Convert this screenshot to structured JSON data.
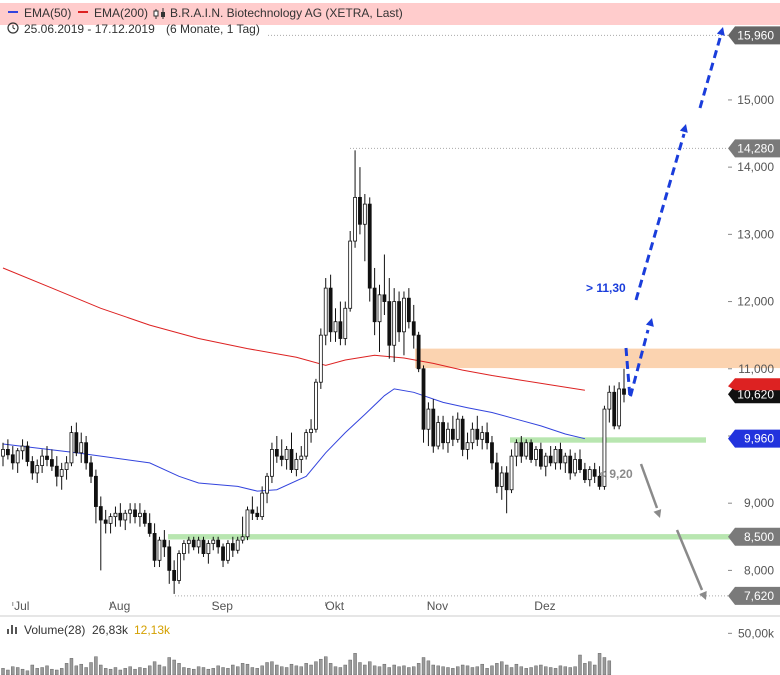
{
  "header": {
    "legend": [
      {
        "label": "EMA(50)",
        "color": "#3344dd"
      },
      {
        "label": "EMA(200)",
        "color": "#dd2222"
      }
    ],
    "title": "B.R.A.I.N. Biotechnology AG (XETRA, Last)",
    "date_range": "25.06.2019 - 17.12.2019",
    "period": "(6 Monate, 1 Tag)"
  },
  "colors": {
    "ema50": "#3344dd",
    "ema200": "#dd2222",
    "resistance_zone": "#fbd3b0",
    "support_zone": "#b8e6b0",
    "arrow_up": "#1a3ddb",
    "arrow_down": "#8a8a8a",
    "resistance_badge": "#ffb3b3",
    "last_price_badge": "#111111",
    "ema50_badge": "#2233dd"
  },
  "icons": [
    "candlestick-icon",
    "clock-icon",
    "volume-bars-icon"
  ],
  "chart_data": {
    "type": "candlestick",
    "ylim": [
      7500,
      16100
    ],
    "y_ticks": [
      "8,000",
      "9,000",
      "10,000",
      "11,000",
      "12,000",
      "13,000",
      "14,000",
      "15,000"
    ],
    "x_months": [
      "Jul",
      "Aug",
      "Sep",
      "Okt",
      "Nov",
      "Dez"
    ],
    "candles": [
      [
        9700,
        9900,
        9550,
        9800
      ],
      [
        9800,
        9950,
        9650,
        9720
      ],
      [
        9720,
        9850,
        9500,
        9600
      ],
      [
        9600,
        9820,
        9450,
        9780
      ],
      [
        9780,
        9950,
        9650,
        9850
      ],
      [
        9850,
        9920,
        9550,
        9620
      ],
      [
        9620,
        9700,
        9350,
        9450
      ],
      [
        9450,
        9650,
        9300,
        9560
      ],
      [
        9560,
        9800,
        9450,
        9700
      ],
      [
        9700,
        9850,
        9550,
        9650
      ],
      [
        9650,
        9800,
        9480,
        9550
      ],
      [
        9550,
        9700,
        9250,
        9400
      ],
      [
        9400,
        9600,
        9200,
        9500
      ],
      [
        9500,
        9700,
        9350,
        9600
      ],
      [
        9600,
        10150,
        9550,
        10050
      ],
      [
        10050,
        10200,
        9700,
        9750
      ],
      [
        9750,
        10050,
        9600,
        9900
      ],
      [
        9900,
        10000,
        9500,
        9600
      ],
      [
        9600,
        9700,
        9300,
        9400
      ],
      [
        9400,
        9500,
        8700,
        8950
      ],
      [
        8950,
        9100,
        8000,
        8750
      ],
      [
        8750,
        8900,
        8550,
        8700
      ],
      [
        8700,
        8850,
        8550,
        8800
      ],
      [
        8800,
        8950,
        8650,
        8850
      ],
      [
        8850,
        9000,
        8650,
        8750
      ],
      [
        8750,
        8900,
        8600,
        8850
      ],
      [
        8850,
        9000,
        8700,
        8900
      ],
      [
        8900,
        9000,
        8700,
        8800
      ],
      [
        8800,
        9000,
        8650,
        8850
      ],
      [
        8850,
        8900,
        8650,
        8700
      ],
      [
        8700,
        8850,
        8500,
        8550
      ],
      [
        8550,
        8700,
        8050,
        8150
      ],
      [
        8150,
        8500,
        8050,
        8450
      ],
      [
        8450,
        8600,
        8200,
        8350
      ],
      [
        8350,
        8450,
        7800,
        8000
      ],
      [
        8000,
        8150,
        7650,
        7850
      ],
      [
        7850,
        8300,
        7800,
        8250
      ],
      [
        8250,
        8450,
        8150,
        8400
      ],
      [
        8400,
        8500,
        8250,
        8450
      ],
      [
        8450,
        8500,
        8300,
        8350
      ],
      [
        8350,
        8500,
        8250,
        8450
      ],
      [
        8450,
        8500,
        8200,
        8250
      ],
      [
        8250,
        8450,
        8100,
        8400
      ],
      [
        8400,
        8500,
        8300,
        8450
      ],
      [
        8450,
        8500,
        8250,
        8350
      ],
      [
        8350,
        8400,
        8050,
        8150
      ],
      [
        8150,
        8450,
        8100,
        8400
      ],
      [
        8400,
        8500,
        8200,
        8300
      ],
      [
        8300,
        8500,
        8250,
        8450
      ],
      [
        8450,
        8800,
        8400,
        8500
      ],
      [
        8500,
        8950,
        8450,
        8900
      ],
      [
        8900,
        9100,
        8750,
        8850
      ],
      [
        8850,
        8950,
        8750,
        8800
      ],
      [
        8800,
        9250,
        8750,
        9150
      ],
      [
        9150,
        9450,
        9000,
        9400
      ],
      [
        9400,
        9900,
        9300,
        9800
      ],
      [
        9800,
        10000,
        9600,
        9700
      ],
      [
        9700,
        9950,
        9550,
        9650
      ],
      [
        9650,
        9850,
        9500,
        9800
      ],
      [
        9800,
        10050,
        9450,
        9500
      ],
      [
        9500,
        9750,
        9400,
        9650
      ],
      [
        9650,
        9850,
        9450,
        9700
      ],
      [
        9700,
        10100,
        9650,
        10050
      ],
      [
        10050,
        10250,
        9900,
        10100
      ],
      [
        10100,
        10850,
        10050,
        10800
      ],
      [
        10800,
        11600,
        10700,
        11500
      ],
      [
        11500,
        12350,
        11350,
        12200
      ],
      [
        12200,
        12400,
        11400,
        11550
      ],
      [
        11550,
        11900,
        11400,
        11700
      ],
      [
        11700,
        12000,
        11350,
        11450
      ],
      [
        11450,
        12000,
        11350,
        11900
      ],
      [
        11900,
        13050,
        11850,
        12900
      ],
      [
        12900,
        14250,
        12800,
        13550
      ],
      [
        13550,
        14000,
        13000,
        13150
      ],
      [
        13150,
        13600,
        12600,
        13450
      ],
      [
        13450,
        13550,
        12000,
        12200
      ],
      [
        12200,
        12500,
        11500,
        11700
      ],
      [
        11700,
        12250,
        11250,
        12100
      ],
      [
        12100,
        12700,
        11800,
        12000
      ],
      [
        12000,
        12350,
        11150,
        11350
      ],
      [
        11350,
        12200,
        11100,
        12000
      ],
      [
        12000,
        12150,
        11400,
        11550
      ],
      [
        11550,
        12150,
        11200,
        12050
      ],
      [
        12050,
        12200,
        11600,
        11700
      ],
      [
        11700,
        11950,
        11300,
        11500
      ],
      [
        11500,
        11550,
        10950,
        11000
      ],
      [
        11000,
        11050,
        9900,
        10100
      ],
      [
        10100,
        10500,
        9850,
        10400
      ],
      [
        10400,
        10550,
        9750,
        9850
      ],
      [
        9850,
        10300,
        9800,
        10200
      ],
      [
        10200,
        10300,
        9800,
        9900
      ],
      [
        9900,
        10200,
        9750,
        10100
      ],
      [
        10100,
        10300,
        9850,
        9950
      ],
      [
        9950,
        10350,
        9900,
        10250
      ],
      [
        10250,
        10300,
        9700,
        9800
      ],
      [
        9800,
        10050,
        9650,
        9900
      ],
      [
        9900,
        10200,
        9800,
        10100
      ],
      [
        10100,
        10300,
        9850,
        9950
      ],
      [
        9950,
        10150,
        9800,
        10050
      ],
      [
        10050,
        10200,
        9800,
        9900
      ],
      [
        9900,
        10000,
        9500,
        9600
      ],
      [
        9600,
        9750,
        9150,
        9250
      ],
      [
        9250,
        9550,
        9050,
        9450
      ],
      [
        9450,
        9550,
        8850,
        9200
      ],
      [
        9200,
        9800,
        9150,
        9700
      ],
      [
        9700,
        9950,
        9550,
        9900
      ],
      [
        9900,
        10000,
        9600,
        9700
      ],
      [
        9700,
        9950,
        9650,
        9900
      ],
      [
        9900,
        9950,
        9600,
        9650
      ],
      [
        9650,
        9850,
        9550,
        9800
      ],
      [
        9800,
        9900,
        9500,
        9550
      ],
      [
        9550,
        9750,
        9400,
        9700
      ],
      [
        9700,
        9850,
        9550,
        9600
      ],
      [
        9600,
        9850,
        9500,
        9800
      ],
      [
        9800,
        9900,
        9500,
        9600
      ],
      [
        9600,
        9750,
        9450,
        9700
      ],
      [
        9700,
        9800,
        9350,
        9450
      ],
      [
        9450,
        9750,
        9400,
        9650
      ],
      [
        9650,
        9800,
        9450,
        9500
      ],
      [
        9500,
        9600,
        9300,
        9350
      ],
      [
        9350,
        9550,
        9250,
        9500
      ],
      [
        9500,
        9600,
        9300,
        9400
      ],
      [
        9400,
        9550,
        9200,
        9250
      ],
      [
        9250,
        10450,
        9200,
        10400
      ],
      [
        10400,
        10750,
        10200,
        10650
      ],
      [
        10650,
        10750,
        10100,
        10150
      ],
      [
        10150,
        10800,
        10100,
        10700
      ],
      [
        10700,
        11000,
        10500,
        10620
      ]
    ],
    "ema50": [
      [
        0,
        9880
      ],
      [
        15,
        9750
      ],
      [
        30,
        9600
      ],
      [
        36,
        9400
      ],
      [
        40,
        9300
      ],
      [
        48,
        9250
      ],
      [
        52,
        9180
      ],
      [
        56,
        9200
      ],
      [
        62,
        9400
      ],
      [
        66,
        9750
      ],
      [
        70,
        10050
      ],
      [
        74,
        10320
      ],
      [
        78,
        10600
      ],
      [
        80,
        10700
      ],
      [
        84,
        10650
      ],
      [
        90,
        10500
      ],
      [
        95,
        10420
      ],
      [
        100,
        10350
      ],
      [
        105,
        10250
      ],
      [
        110,
        10150
      ],
      [
        115,
        10030
      ],
      [
        119,
        9960
      ]
    ],
    "ema200": [
      [
        0,
        12500
      ],
      [
        10,
        12200
      ],
      [
        20,
        11900
      ],
      [
        30,
        11650
      ],
      [
        40,
        11450
      ],
      [
        50,
        11300
      ],
      [
        60,
        11170
      ],
      [
        66,
        11050
      ],
      [
        70,
        11130
      ],
      [
        76,
        11200
      ],
      [
        82,
        11160
      ],
      [
        88,
        11080
      ],
      [
        94,
        10980
      ],
      [
        100,
        10900
      ],
      [
        106,
        10830
      ],
      [
        112,
        10760
      ],
      [
        119,
        10680
      ]
    ],
    "zones": [
      {
        "name": "resistance",
        "from": 11010,
        "to": 11300
      },
      {
        "name": "support",
        "from": 9900,
        "to": 9980
      },
      {
        "name": "support-low",
        "from": 8460,
        "to": 8540
      }
    ],
    "reference_lines": [
      15960,
      14280,
      7620
    ],
    "annotations": [
      {
        "text": "> 11,30",
        "value": 11300,
        "color": "#1a3ddb"
      },
      {
        "text": "< 9,20",
        "value": 9200,
        "color": "#8a8a8a"
      }
    ],
    "price_badges": [
      {
        "value": 15960,
        "label": "15,960",
        "kind": "level"
      },
      {
        "value": 14280,
        "label": "14,280",
        "kind": "level"
      },
      {
        "value": 10620,
        "label": "10,620",
        "kind": "last"
      },
      {
        "value": 9960,
        "label": "9,960",
        "kind": "ema50"
      },
      {
        "value": 8500,
        "label": "8,500",
        "kind": "level"
      },
      {
        "value": 7620,
        "label": "7,620",
        "kind": "level"
      }
    ],
    "volume": {
      "label": "Volume(28)",
      "value1": "26,83k",
      "value2": "12,13k",
      "value2_color": "#d4a000",
      "ylim": [
        0,
        60000
      ],
      "tick": "50,00k",
      "values": [
        8,
        6,
        10,
        9,
        7,
        5,
        12,
        8,
        9,
        11,
        7,
        6,
        8,
        14,
        20,
        11,
        13,
        9,
        15,
        22,
        12,
        8,
        7,
        9,
        6,
        8,
        10,
        7,
        9,
        8,
        11,
        16,
        12,
        10,
        21,
        18,
        14,
        9,
        8,
        7,
        10,
        9,
        7,
        8,
        11,
        9,
        8,
        12,
        10,
        14,
        13,
        9,
        8,
        11,
        15,
        16,
        12,
        10,
        9,
        13,
        11,
        10,
        14,
        12,
        16,
        19,
        22,
        14,
        10,
        9,
        12,
        18,
        26,
        15,
        12,
        16,
        11,
        10,
        13,
        9,
        12,
        10,
        11,
        9,
        10,
        14,
        21,
        17,
        12,
        11,
        10,
        9,
        8,
        10,
        12,
        11,
        9,
        10,
        13,
        8,
        11,
        14,
        16,
        12,
        9,
        13,
        10,
        8,
        9,
        11,
        12,
        10,
        9,
        8,
        11,
        10,
        9,
        10,
        24,
        14,
        16,
        12,
        26,
        21,
        17
      ]
    }
  }
}
